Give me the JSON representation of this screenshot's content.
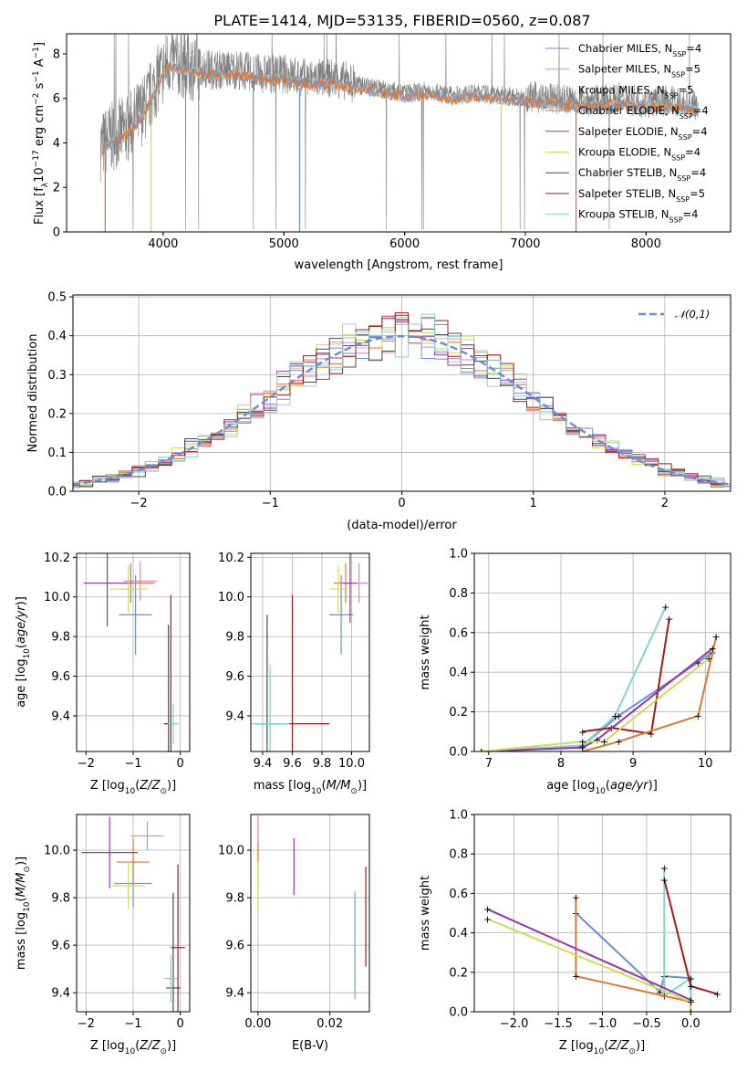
{
  "figure": {
    "title": "PLATE=1414, MJD=53135, FIBERID=0560, z=0.087"
  },
  "series": [
    {
      "key": "chabrier_miles",
      "label": "Chabrier MILES, N",
      "nssp": "=4",
      "color": "#6a8fd8"
    },
    {
      "key": "salpeter_miles",
      "label": "Salpeter MILES, N",
      "nssp": "=5",
      "color": "#e77fc0"
    },
    {
      "key": "kroupa_miles",
      "label": "Kroupa MILES, N",
      "nssp": "=5",
      "color": "#bebebe"
    },
    {
      "key": "chabrier_elodie",
      "label": "Chabrier ELODIE, N",
      "nssp": "=4",
      "color": "#e2762b"
    },
    {
      "key": "salpeter_elodie",
      "label": "Salpeter ELODIE, N",
      "nssp": "=4",
      "color": "#9a31b0"
    },
    {
      "key": "kroupa_elodie",
      "label": "Kroupa ELODIE, N",
      "nssp": "=4",
      "color": "#c6e04e"
    },
    {
      "key": "chabrier_stelib",
      "label": "Chabrier STELIB, N",
      "nssp": "=4",
      "color": "#4a4a4a"
    },
    {
      "key": "salpeter_stelib",
      "label": "Salpeter STELIB, N",
      "nssp": "=5",
      "color": "#a81818"
    },
    {
      "key": "kroupa_stelib",
      "label": "Kroupa STELIB, N",
      "nssp": "=4",
      "color": "#7fd3d8"
    }
  ],
  "subscript_ssp": "SSP",
  "chart_data": [
    {
      "id": "spectrum",
      "type": "line",
      "xlabel": "wavelength [Angstrom, rest frame]",
      "ylabel": "Flux [f",
      "ylabel_sub": "λ",
      "ylabel_rest": "10",
      "ylabel_exp": "−17",
      "ylabel_tail": " erg cm",
      "xlim": [
        3200,
        8700
      ],
      "ylim": [
        0,
        8.9
      ],
      "xticks": [
        4000,
        5000,
        6000,
        7000,
        8000
      ],
      "yticks": [
        0,
        2,
        4,
        6,
        8
      ],
      "data_color": "#808080",
      "continuum": {
        "x": [
          3480,
          3550,
          3700,
          3850,
          3950,
          4050,
          4200,
          4400,
          4600,
          4800,
          5000,
          5200,
          5400,
          5600,
          5800,
          6000,
          6200,
          6400,
          6600,
          6800,
          7000,
          7200,
          7400,
          7600,
          7800,
          8000,
          8200,
          8400
        ],
        "y": [
          3.8,
          4.2,
          4.6,
          5.6,
          6.8,
          7.7,
          7.5,
          7.3,
          7.3,
          7.1,
          7.1,
          6.9,
          6.9,
          6.7,
          6.5,
          6.3,
          6.4,
          6.2,
          6.3,
          6.2,
          6.1,
          6.0,
          5.9,
          5.9,
          6.0,
          5.8,
          5.9,
          5.7
        ]
      },
      "model_dips": [
        {
          "x": 3900,
          "color": "#c6e04e"
        },
        {
          "x": 5130,
          "color": "#6a8fd8"
        },
        {
          "x": 6800,
          "color": "#c6e04e"
        },
        {
          "x": 7420,
          "color": "#e2762b"
        },
        {
          "x": 3520,
          "color": "#e2762b"
        }
      ]
    },
    {
      "id": "residuals",
      "type": "area",
      "xlabel": "(data-model)/error",
      "ylabel": "Normed distribution",
      "legend": "𝒩(0,1)",
      "xlim": [
        -2.5,
        2.5
      ],
      "ylim": [
        0,
        0.505
      ],
      "xticks": [
        -2,
        -1,
        0,
        1,
        2
      ],
      "yticks": [
        0.0,
        0.1,
        0.2,
        0.3,
        0.4,
        0.5
      ]
    },
    {
      "id": "age_vs_Z",
      "type": "scatter",
      "xlabel": "Z [log",
      "ylabel": "age  [log",
      "xlim": [
        -2.2,
        0.2
      ],
      "ylim": [
        9.22,
        10.22
      ],
      "xticks": [
        -2,
        -1,
        0
      ],
      "yticks": [
        9.4,
        9.6,
        9.8,
        10.0,
        10.2
      ],
      "points": [
        {
          "s": 0,
          "x": -0.95,
          "y": 9.91,
          "xe": 0.35,
          "ye": 0.2
        },
        {
          "s": 1,
          "x": -0.85,
          "y": 10.08,
          "xe": 0.35,
          "ye": 0.1
        },
        {
          "s": 2,
          "x": -0.2,
          "y": 9.36,
          "xe": 0.15,
          "ye": 0.05
        },
        {
          "s": 3,
          "x": -1.05,
          "y": 10.07,
          "xe": 0.5,
          "ye": 0.1
        },
        {
          "s": 4,
          "x": -1.55,
          "y": 10.07,
          "xe": 0.5,
          "ye": 0.22
        },
        {
          "s": 5,
          "x": -1.1,
          "y": 10.04,
          "xe": 0.4,
          "ye": 0.12
        },
        {
          "s": 6,
          "x": -0.25,
          "y": 9.36,
          "xe": 0.1,
          "ye": 0.5
        },
        {
          "s": 7,
          "x": -0.2,
          "y": 9.36,
          "xe": 0.12,
          "ye": 0.65
        },
        {
          "s": 8,
          "x": -0.15,
          "y": 9.36,
          "xe": 0.12,
          "ye": 0.1
        }
      ]
    },
    {
      "id": "age_vs_mass",
      "type": "scatter",
      "xlabel": "mass [log",
      "ylabel": "",
      "xlim": [
        9.32,
        10.12
      ],
      "ylim": [
        9.22,
        10.22
      ],
      "xticks": [
        9.4,
        9.6,
        9.8,
        10.0
      ],
      "yticks": [
        9.4,
        9.6,
        9.8,
        10.0,
        10.2
      ],
      "points": [
        {
          "s": 0,
          "x": 9.93,
          "y": 9.91,
          "xe": 0.08,
          "ye": 0.2
        },
        {
          "s": 1,
          "x": 10.05,
          "y": 10.07,
          "xe": 0.06,
          "ye": 0.1
        },
        {
          "s": 2,
          "x": 9.45,
          "y": 9.36,
          "xe": 0.05,
          "ye": 0.05
        },
        {
          "s": 3,
          "x": 9.96,
          "y": 10.07,
          "xe": 0.08,
          "ye": 0.1
        },
        {
          "s": 4,
          "x": 9.99,
          "y": 10.07,
          "xe": 0.05,
          "ye": 0.2
        },
        {
          "s": 5,
          "x": 9.91,
          "y": 10.04,
          "xe": 0.06,
          "ye": 0.12
        },
        {
          "s": 6,
          "x": 9.43,
          "y": 9.36,
          "xe": 0.04,
          "ye": 0.55
        },
        {
          "s": 7,
          "x": 9.6,
          "y": 9.36,
          "xe": 0.25,
          "ye": 0.65
        },
        {
          "s": 8,
          "x": 9.45,
          "y": 9.36,
          "xe": 0.13,
          "ye": 0.3
        }
      ]
    },
    {
      "id": "mw_vs_age",
      "type": "line",
      "xlabel": "age  [log",
      "ylabel": "mass weight",
      "xlim": [
        6.8,
        10.35
      ],
      "ylim": [
        0,
        1.0
      ],
      "xticks": [
        7,
        8,
        9,
        10
      ],
      "yticks": [
        0.0,
        0.2,
        0.4,
        0.6,
        0.8,
        1.0
      ],
      "lines": [
        {
          "s": 0,
          "x": [
            6.9,
            8.3,
            8.8,
            9.9,
            10.1
          ],
          "y": [
            0.0,
            0.03,
            0.18,
            0.45,
            0.5
          ]
        },
        {
          "s": 8,
          "x": [
            6.9,
            8.3,
            8.75,
            9.45
          ],
          "y": [
            0.0,
            0.03,
            0.18,
            0.73
          ]
        },
        {
          "s": 7,
          "x": [
            8.3,
            8.7,
            9.25,
            9.5
          ],
          "y": [
            0.1,
            0.12,
            0.09,
            0.67
          ]
        },
        {
          "s": 3,
          "x": [
            8.3,
            8.8,
            9.9,
            10.15
          ],
          "y": [
            0.0,
            0.05,
            0.18,
            0.58
          ]
        },
        {
          "s": 4,
          "x": [
            6.9,
            8.3,
            8.5,
            10.1
          ],
          "y": [
            0.0,
            0.02,
            0.06,
            0.52
          ]
        },
        {
          "s": 5,
          "x": [
            6.9,
            8.3,
            8.6,
            10.05
          ],
          "y": [
            0.0,
            0.05,
            0.05,
            0.47
          ]
        }
      ]
    },
    {
      "id": "mass_vs_Z",
      "type": "scatter",
      "xlabel": "Z [log",
      "ylabel": "mass [log",
      "xlim": [
        -2.2,
        0.2
      ],
      "ylim": [
        9.32,
        10.15
      ],
      "xticks": [
        -2,
        -1,
        0
      ],
      "yticks": [
        9.4,
        9.6,
        9.8,
        10.0
      ],
      "points": [
        {
          "s": 0,
          "x": -1.0,
          "y": 9.86,
          "xe": 0.4,
          "ye": 0.1
        },
        {
          "s": 1,
          "x": -0.7,
          "y": 10.06,
          "xe": 0.35,
          "ye": 0.06
        },
        {
          "s": 2,
          "x": -0.2,
          "y": 9.46,
          "xe": 0.15,
          "ye": 0.04
        },
        {
          "s": 3,
          "x": -1.0,
          "y": 9.95,
          "xe": 0.35,
          "ye": 0.1
        },
        {
          "s": 4,
          "x": -1.5,
          "y": 9.99,
          "xe": 0.6,
          "ye": 0.15
        },
        {
          "s": 5,
          "x": -1.1,
          "y": 9.85,
          "xe": 0.35,
          "ye": 0.1
        },
        {
          "s": 6,
          "x": -0.15,
          "y": 9.42,
          "xe": 0.15,
          "ye": 0.4
        },
        {
          "s": 7,
          "x": -0.05,
          "y": 9.59,
          "xe": 0.15,
          "ye": 0.35
        },
        {
          "s": 8,
          "x": -0.2,
          "y": 9.46,
          "xe": 0.12,
          "ye": 0.1
        }
      ]
    },
    {
      "id": "mass_vs_EBV",
      "type": "scatter",
      "xlabel": "E(B-V)",
      "ylabel": "",
      "xlim": [
        -0.002,
        0.031
      ],
      "ylim": [
        9.32,
        10.15
      ],
      "xticks": [
        0.0,
        0.02
      ],
      "yticks": [
        9.4,
        9.6,
        9.8,
        10.0
      ],
      "points": [
        {
          "s": 1,
          "x": 0.0,
          "y": 10.06,
          "ye": 0.08
        },
        {
          "s": 3,
          "x": 0.0,
          "y": 9.95,
          "ye": 0.08
        },
        {
          "s": 5,
          "x": 0.0,
          "y": 9.85,
          "ye": 0.1
        },
        {
          "s": 4,
          "x": 0.01,
          "y": 9.93,
          "ye": 0.12
        },
        {
          "s": 6,
          "x": 0.027,
          "y": 9.6,
          "ye": 0.22
        },
        {
          "s": 8,
          "x": 0.027,
          "y": 9.6,
          "ye": 0.23
        },
        {
          "s": 7,
          "x": 0.03,
          "y": 9.72,
          "ye": 0.21
        }
      ]
    },
    {
      "id": "mw_vs_Z",
      "type": "line",
      "xlabel": "Z [log",
      "ylabel": "mass weight",
      "xlim": [
        -2.45,
        0.45
      ],
      "ylim": [
        0,
        1.0
      ],
      "xticks": [
        -2.0,
        -1.5,
        -1.0,
        -0.5,
        0.0
      ],
      "yticks": [
        0.0,
        0.2,
        0.4,
        0.6,
        0.8,
        1.0
      ],
      "lines": [
        {
          "s": 0,
          "x": [
            -1.3,
            -0.35,
            -0.3,
            0.0,
            0.0
          ],
          "y": [
            0.5,
            0.1,
            0.18,
            0.17,
            0.0
          ]
        },
        {
          "s": 8,
          "x": [
            -0.3,
            -0.3,
            0.0,
            0.0
          ],
          "y": [
            0.73,
            0.08,
            0.17,
            0.0
          ]
        },
        {
          "s": 7,
          "x": [
            -0.3,
            0.0,
            0.3
          ],
          "y": [
            0.67,
            0.13,
            0.09
          ]
        },
        {
          "s": 3,
          "x": [
            -1.3,
            -1.3,
            0.0,
            0.0
          ],
          "y": [
            0.58,
            0.18,
            0.05,
            0.0
          ]
        },
        {
          "s": 4,
          "x": [
            -2.3,
            0.0,
            0.0
          ],
          "y": [
            0.52,
            0.06,
            0.0
          ]
        },
        {
          "s": 5,
          "x": [
            -2.3,
            0.0,
            0.0
          ],
          "y": [
            0.47,
            0.05,
            0.0
          ]
        }
      ]
    }
  ]
}
